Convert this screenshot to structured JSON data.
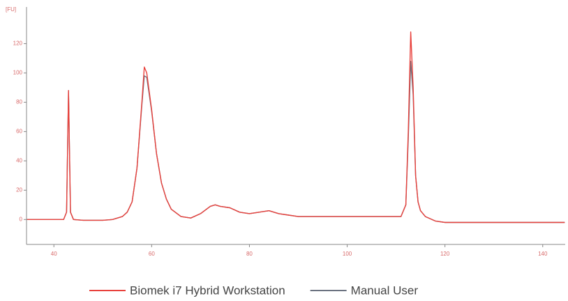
{
  "chart_data": {
    "type": "line",
    "ylabel": "[FU]",
    "x": [
      34.5,
      36,
      38,
      40,
      42,
      42.6,
      43,
      43.4,
      44,
      46,
      48,
      50,
      52,
      54,
      55,
      56,
      57,
      58,
      58.5,
      59,
      60,
      61,
      62,
      63,
      64,
      66,
      68,
      70,
      72,
      73,
      74,
      76,
      78,
      80,
      82,
      84,
      86,
      88,
      90,
      95,
      100,
      105,
      110,
      111,
      112,
      112.5,
      113,
      113.5,
      114,
      114.5,
      115,
      116,
      118,
      120,
      125,
      130,
      135,
      140,
      144.5
    ],
    "series": [
      {
        "name": "Manual User",
        "color": "#6b7280",
        "values": [
          0,
          0,
          0,
          0,
          0,
          5,
          88,
          5,
          0,
          -0.5,
          -0.5,
          -0.5,
          0,
          2,
          5,
          12,
          35,
          78,
          98,
          97,
          74,
          45,
          25,
          14,
          7,
          2,
          1,
          4,
          9,
          10,
          9,
          8,
          5,
          4,
          5,
          6,
          4,
          3,
          2,
          2,
          2,
          2,
          2,
          2,
          10,
          55,
          108,
          85,
          30,
          12,
          6,
          2,
          -1,
          -2,
          -2,
          -2,
          -2,
          -2,
          -2
        ]
      },
      {
        "name": "Biomek i7 Hybrid Workstation",
        "color": "#e8413c",
        "values": [
          0,
          0,
          0,
          0,
          0,
          5,
          88,
          5,
          0,
          -0.5,
          -0.5,
          -0.5,
          0,
          2,
          5,
          12,
          35,
          80,
          104,
          100,
          75,
          45,
          25,
          14,
          7,
          2,
          1,
          4,
          9,
          10,
          9,
          8,
          5,
          4,
          5,
          6,
          4,
          3,
          2,
          2,
          2,
          2,
          2,
          2,
          10,
          60,
          128,
          90,
          30,
          12,
          6,
          2,
          -1,
          -2,
          -2,
          -2,
          -2,
          -2,
          -2
        ]
      }
    ],
    "legend_order": [
      1,
      0
    ],
    "xlim": [
      34.4,
      144.6
    ],
    "xticks": [
      40,
      60,
      80,
      100,
      120,
      140
    ],
    "ylim": [
      -17,
      145
    ],
    "yticks": [
      0,
      20,
      40,
      60,
      80,
      100,
      120
    ]
  }
}
